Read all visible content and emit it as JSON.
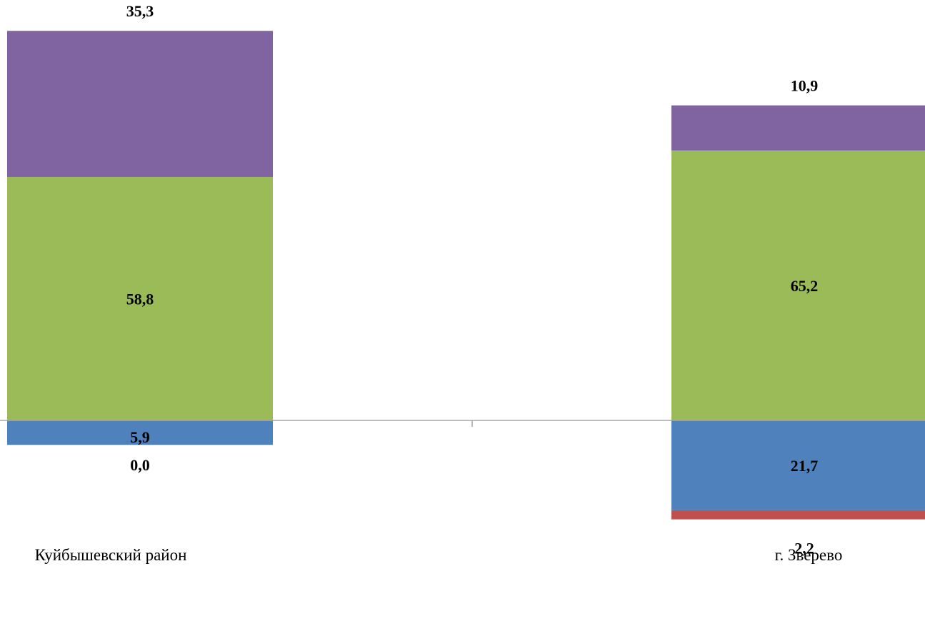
{
  "chart_data": {
    "type": "bar",
    "stacked": "diverging",
    "categories": [
      "Куйбышевский  район",
      "г. Зверево"
    ],
    "series": [
      {
        "color": "#8064A2",
        "direction": "up",
        "values": [
          35.3,
          10.9
        ],
        "labels": [
          "35,3",
          "10,9"
        ]
      },
      {
        "color": "#9BBB59",
        "direction": "up",
        "values": [
          58.8,
          65.2
        ],
        "labels": [
          "58,8",
          "65,2"
        ]
      },
      {
        "color": "#4F81BD",
        "direction": "down",
        "values": [
          5.9,
          21.7
        ],
        "labels": [
          "5,9",
          "21,7"
        ]
      },
      {
        "color": "#C0504D",
        "direction": "down",
        "values": [
          0.0,
          2.2
        ],
        "labels": [
          "0,0",
          "2,2"
        ]
      }
    ],
    "axis_color": "#A6A6A6",
    "grid": false,
    "legend": "none"
  }
}
